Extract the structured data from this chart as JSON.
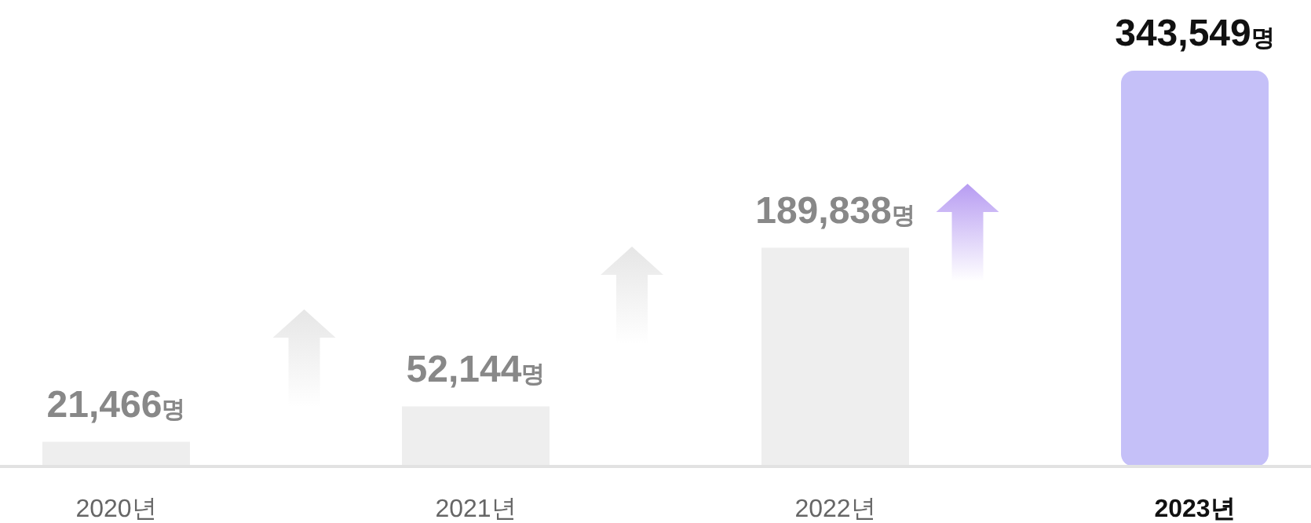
{
  "chart_data": {
    "type": "bar",
    "categories": [
      "2020년",
      "2021년",
      "2022년",
      "2023년"
    ],
    "values": [
      21466,
      52144,
      189838,
      343549
    ],
    "colors": [
      "#eeeeee",
      "#eeeeee",
      "#eeeeee",
      "#c5c0f8"
    ],
    "value_labels": [
      "21,466명",
      "52,144명",
      "189,838명",
      "343,549명"
    ],
    "grid": false
  }
}
